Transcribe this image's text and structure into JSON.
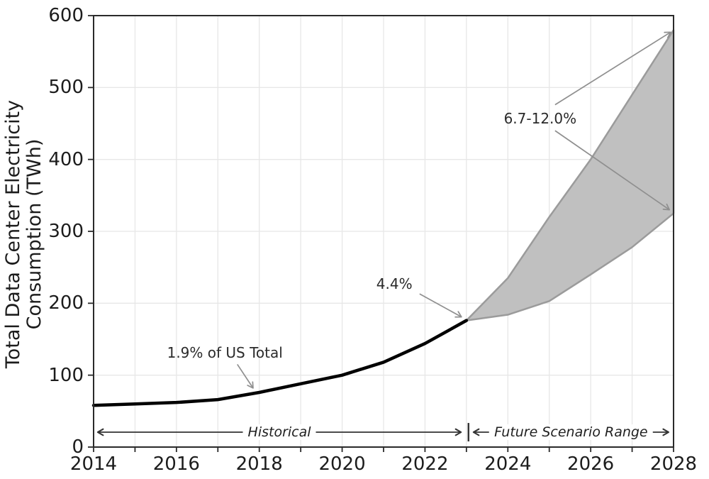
{
  "chart_data": {
    "type": "line",
    "title": "",
    "xlabel": "",
    "ylabel": "Total Data Center Electricity\nConsumption (TWh)",
    "ylabel_line1": "Total Data Center Electricity",
    "ylabel_line2": "Consumption (TWh)",
    "xlim": [
      2014,
      2028
    ],
    "ylim": [
      0,
      600
    ],
    "grid": true,
    "legend_position": "none",
    "x_ticks_labeled": [
      2014,
      2016,
      2018,
      2020,
      2022,
      2024,
      2026,
      2028
    ],
    "x_tick_minor_step": 1,
    "y_ticks": [
      0,
      100,
      200,
      300,
      400,
      500,
      600
    ],
    "series": [
      {
        "name": "Historical",
        "type": "line",
        "color": "#000000",
        "x": [
          2014,
          2015,
          2016,
          2017,
          2018,
          2019,
          2020,
          2021,
          2022,
          2023
        ],
        "values": [
          58,
          60,
          62,
          66,
          76,
          88,
          100,
          118,
          144,
          176
        ]
      },
      {
        "name": "Future Scenario Range",
        "type": "band",
        "fill_color": "#c0c0c0",
        "edge_color": "#9b9b9b",
        "x": [
          2023,
          2024,
          2025,
          2026,
          2027,
          2028
        ],
        "upper": [
          176,
          235,
          320,
          400,
          490,
          580
        ],
        "lower": [
          176,
          184,
          203,
          240,
          278,
          325
        ]
      }
    ],
    "annotations": [
      {
        "label": "1.9% of US Total",
        "text_x": 2017.17,
        "text_y": 131,
        "arrows": [
          {
            "from": [
              2017.47,
              115
            ],
            "to": [
              2017.85,
              82
            ]
          }
        ]
      },
      {
        "label": "4.4%",
        "text_x": 2021.26,
        "text_y": 227,
        "arrows": [
          {
            "from": [
              2021.87,
              213
            ],
            "to": [
              2022.88,
              181
            ]
          }
        ]
      },
      {
        "label": "6.7-12.0%",
        "text_x": 2024.78,
        "text_y": 457,
        "arrows": [
          {
            "from": [
              2025.14,
              476
            ],
            "to": [
              2027.93,
              577
            ]
          },
          {
            "from": [
              2025.14,
              440
            ],
            "to": [
              2027.9,
              330
            ]
          }
        ]
      }
    ],
    "range_markers": [
      {
        "label": "Historical",
        "x_start": 2014.1,
        "x_end": 2022.87,
        "y": 20.7
      },
      {
        "label": "Future Scenario Range",
        "x_start": 2023.17,
        "x_end": 2027.88,
        "y": 20.7
      }
    ],
    "separator": {
      "glyph": "|",
      "x": 2023.05,
      "y": 20.7
    }
  },
  "colors": {
    "background": "#ffffff",
    "grid": "#e7e7e7",
    "spine": "#2a2a2a",
    "tick": "#2a2a2a",
    "text": "#1c1c1c",
    "historical_line": "#000000",
    "fan_fill": "#c0c0c0",
    "fan_edge": "#9b9b9b",
    "annotation_arrow": "#8f8f8f",
    "range_arrow": "#333333"
  }
}
